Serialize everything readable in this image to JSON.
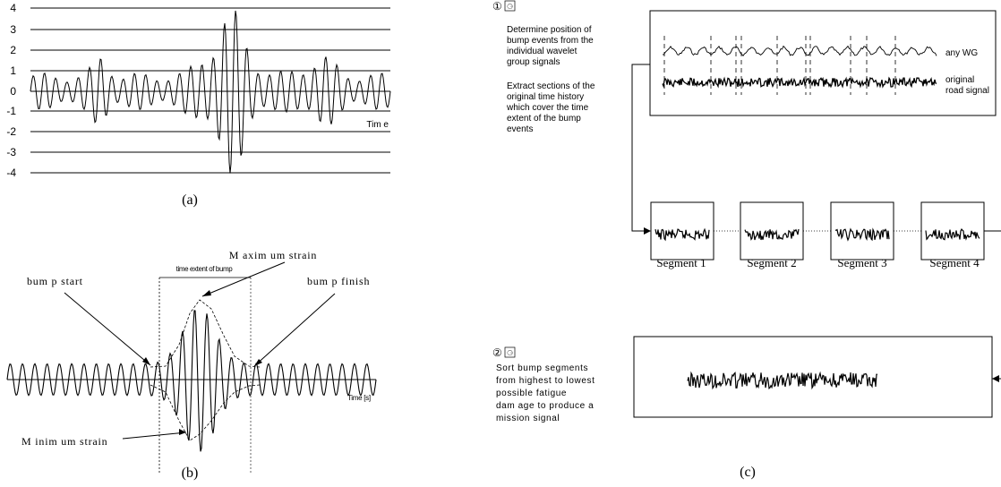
{
  "panel_a": {
    "y_ticks": [
      "4",
      "3",
      "2",
      "1",
      "0",
      "-1",
      "-2",
      "-3",
      "-4"
    ],
    "time_label": "Tim e",
    "caption": "(a)"
  },
  "panel_b": {
    "time_extent_label": "time extent of bump",
    "max_strain_label": "M axim um strain",
    "bump_start_label": "bum p start",
    "bump_finish_label": "bum p finish",
    "min_strain_label": "M inim um strain",
    "time_label": "Time [s]",
    "caption": "(b)"
  },
  "panel_c": {
    "step1_num": "①",
    "step1_text1": [
      "Determine position of",
      "bump events from the",
      "individual wavelet",
      "group signals"
    ],
    "step1_text2": [
      "Extract sections of the",
      "original time history",
      "which cover the time",
      "extent of the bump",
      "events"
    ],
    "wg_label": "any WG",
    "road_label": [
      "original",
      "road signal"
    ],
    "segments": [
      "Segment 1",
      "Segment 2",
      "Segment 3",
      "Segment 4"
    ],
    "step2_num": "②",
    "step2_text": [
      "Sort bump segments",
      "from highest to lowest",
      "possible fatigue",
      "dam age to produce a",
      "mission signal"
    ],
    "caption": "(c)"
  }
}
